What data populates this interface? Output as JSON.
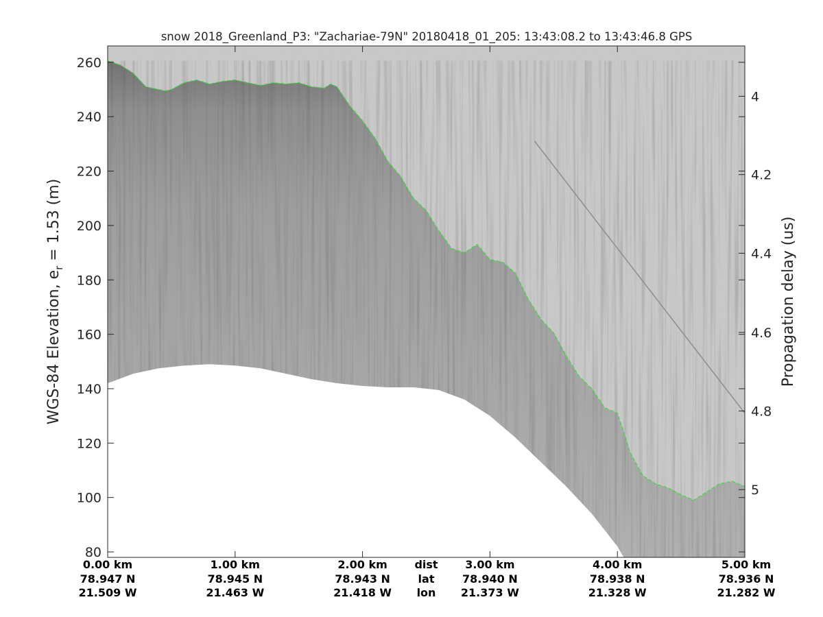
{
  "chart_data": {
    "type": "line",
    "title": "snow 2018_Greenland_P3: \"Zachariae-79N\"  20180418_01_205: 13:43:08.2 to 13:43:46.8 GPS",
    "ylabel_main": "WGS-84 Elevation, e",
    "ylabel_sub": "r",
    "ylabel_tail": " = 1.53 (m)",
    "y2label": "Propagation delay (us)",
    "x_range_km": [
      0,
      5
    ],
    "ylim": [
      78,
      266
    ],
    "yticks": [
      80,
      100,
      120,
      140,
      160,
      180,
      200,
      220,
      240,
      260
    ],
    "y2ticks": [
      {
        "label": "4",
        "elevation": 247.5
      },
      {
        "label": "4.2",
        "elevation": 218.7
      },
      {
        "label": "4.4",
        "elevation": 189.8
      },
      {
        "label": "4.6",
        "elevation": 160.7
      },
      {
        "label": "4.8",
        "elevation": 131.8
      },
      {
        "label": "5",
        "elevation": 102.9
      }
    ],
    "grid": false,
    "colors": {
      "surface_pick": "#33dd33",
      "echogram_background": "#c9c9c9",
      "echogram_dark": "#3a3a3a"
    },
    "series": [
      {
        "x": [
          0,
          0.1,
          0.2,
          0.3,
          0.45,
          0.5,
          0.6,
          0.7,
          0.8,
          0.9,
          1.0,
          1.1,
          1.2,
          1.3,
          1.4,
          1.5,
          1.6,
          1.7,
          1.75,
          1.8,
          1.9,
          2.0,
          2.1,
          2.2,
          2.3,
          2.4,
          2.5,
          2.6,
          2.7,
          2.8,
          2.9,
          3.0,
          3.1,
          3.2,
          3.3,
          3.4,
          3.5,
          3.6,
          3.7,
          3.8,
          3.9,
          4.0,
          4.05,
          4.1,
          4.2,
          4.3,
          4.4,
          4.5,
          4.6,
          4.7,
          4.8,
          4.9,
          5.0
        ],
        "values": [
          260.5,
          259,
          256,
          251,
          249.5,
          250,
          252.5,
          253.5,
          252,
          253,
          253.5,
          252.5,
          251.5,
          252.5,
          252,
          252.5,
          251,
          250.5,
          252,
          251,
          244,
          238.5,
          232,
          223.5,
          218,
          210,
          205.5,
          198,
          191.5,
          190,
          193,
          187.5,
          186.5,
          182.5,
          173,
          165.5,
          160.5,
          152,
          144.5,
          140,
          133,
          131,
          124,
          116.5,
          108,
          105,
          103.5,
          101,
          99,
          102,
          105,
          106,
          104
        ]
      },
      {
        "x": [
          0,
          0.2,
          0.4,
          0.6,
          0.8,
          1.0,
          1.2,
          1.4,
          1.6,
          1.8,
          2.0,
          2.2,
          2.4,
          2.6,
          2.8,
          3.0,
          3.2,
          3.4,
          3.6,
          3.8,
          4.0,
          4.05
        ],
        "values": [
          142,
          145.5,
          147.5,
          148.5,
          149,
          148.5,
          147.5,
          145.5,
          143.5,
          142,
          141,
          140.5,
          140.5,
          139.5,
          136,
          130,
          122,
          113,
          104,
          94,
          82,
          78
        ]
      }
    ],
    "bottom_axis": {
      "row_labels": [
        "dist",
        "lat",
        "lon"
      ],
      "ticks": [
        {
          "km": 0,
          "dist": "0.00 km",
          "lat": "78.947 N",
          "lon": "21.509 W"
        },
        {
          "km": 1,
          "dist": "1.00 km",
          "lat": "78.945 N",
          "lon": "21.463 W"
        },
        {
          "km": 2,
          "dist": "2.00 km",
          "lat": "78.943 N",
          "lon": "21.418 W"
        },
        {
          "km": 3,
          "dist": "3.00 km",
          "lat": "78.940 N",
          "lon": "21.373 W"
        },
        {
          "km": 4,
          "dist": "4.00 km",
          "lat": "78.938 N",
          "lon": "21.328 W"
        },
        {
          "km": 5,
          "dist": "5.00 km",
          "lat": "78.936 N",
          "lon": "21.282 W"
        }
      ]
    }
  }
}
